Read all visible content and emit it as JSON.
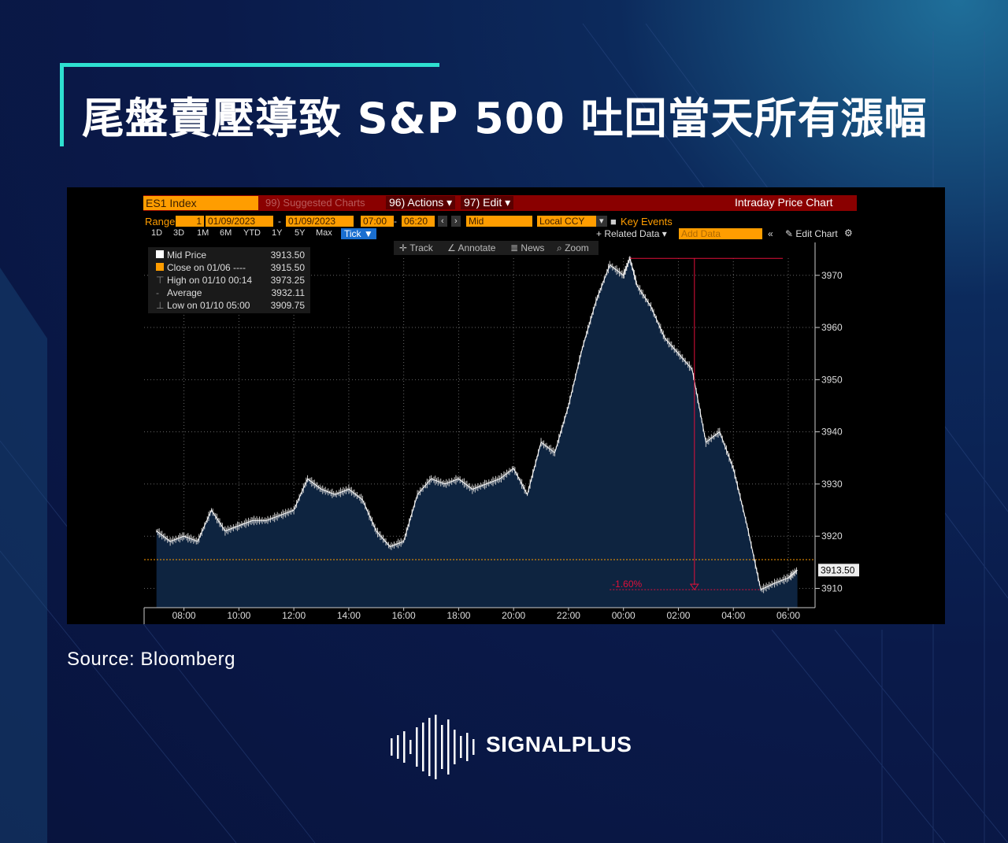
{
  "title": "尾盤賣壓導致 S&P 500 吐回當天所有漲幅",
  "source": "Source: Bloomberg",
  "logo": {
    "name": "SIGNALPLUS"
  },
  "terminal": {
    "ticker": "ES1 Index",
    "suggested": "99) Suggested Charts",
    "actions": "96) Actions ▾",
    "edit": "97) Edit ▾",
    "chart_title": "Intraday Price Chart",
    "range_label": "Range",
    "range_value": "1",
    "date_from": "01/09/2023",
    "date_to": "01/09/2023",
    "time_from": "07:00",
    "time_to": "06:20",
    "price_type": "Mid",
    "currency": "Local CCY",
    "key_events": "Key Events",
    "periods": [
      "1D",
      "3D",
      "1M",
      "6M",
      "YTD",
      "1Y",
      "5Y",
      "Max"
    ],
    "tick": "Tick ▼",
    "related_data": "+ Related Data ▾",
    "add_data": "Add Data",
    "edit_chart": "Edit Chart",
    "tools": [
      "Track",
      "Annotate",
      "News",
      "Zoom"
    ],
    "legend": [
      {
        "label": "Mid Price",
        "value": "3913.50"
      },
      {
        "label": "Close on 01/06 ----",
        "value": "3915.50"
      },
      {
        "label": "High on 01/10 00:14",
        "value": "3973.25"
      },
      {
        "label": "Average",
        "value": "3932.11"
      },
      {
        "label": "Low on 01/10 05:00",
        "value": "3909.75"
      }
    ],
    "last_price_tag": "3913.50",
    "drop_annotation": "-1.60%",
    "colors": {
      "area": "#0e2440",
      "line": "#ffffff",
      "close_line": "#ff9d00",
      "annotation": "#e0103a",
      "header": "#8a0000"
    }
  },
  "chart_data": {
    "type": "line",
    "series": [
      {
        "x": [
          "07:00",
          "07:30",
          "08:00",
          "08:30",
          "09:00",
          "09:30",
          "10:00",
          "10:30",
          "11:00",
          "11:30",
          "12:00",
          "12:30",
          "13:00",
          "13:30",
          "14:00",
          "14:30",
          "15:00",
          "15:30",
          "16:00",
          "16:30",
          "17:00",
          "17:30",
          "18:00",
          "18:30",
          "19:00",
          "19:30",
          "20:00",
          "20:30",
          "21:00",
          "21:30",
          "22:00",
          "22:30",
          "23:00",
          "23:30",
          "00:00",
          "00:14",
          "00:30",
          "01:00",
          "01:30",
          "02:00",
          "02:30",
          "03:00",
          "03:30",
          "04:00",
          "04:30",
          "05:00",
          "05:30",
          "06:00",
          "06:20"
        ],
        "values": [
          3921,
          3919,
          3920,
          3919,
          3925,
          3921,
          3922,
          3923,
          3923,
          3924,
          3925,
          3931,
          3929,
          3928,
          3929,
          3927,
          3921,
          3918,
          3919,
          3928,
          3931,
          3930,
          3931,
          3929,
          3930,
          3931,
          3933,
          3928,
          3938,
          3936,
          3945,
          3956,
          3965,
          3972,
          3970,
          3973.25,
          3968,
          3964,
          3958,
          3955,
          3952,
          3938,
          3940,
          3933,
          3922,
          3909.75,
          3911,
          3912,
          3913.5
        ]
      }
    ],
    "xticks": [
      "08:00",
      "10:00",
      "12:00",
      "14:00",
      "16:00",
      "18:00",
      "20:00",
      "22:00",
      "00:00",
      "02:00",
      "04:00",
      "06:00"
    ],
    "yticks": [
      3910,
      3920,
      3930,
      3940,
      3950,
      3960,
      3970
    ],
    "ylim": [
      3906,
      3976
    ],
    "reference_line": 3915.5,
    "grid": true
  }
}
